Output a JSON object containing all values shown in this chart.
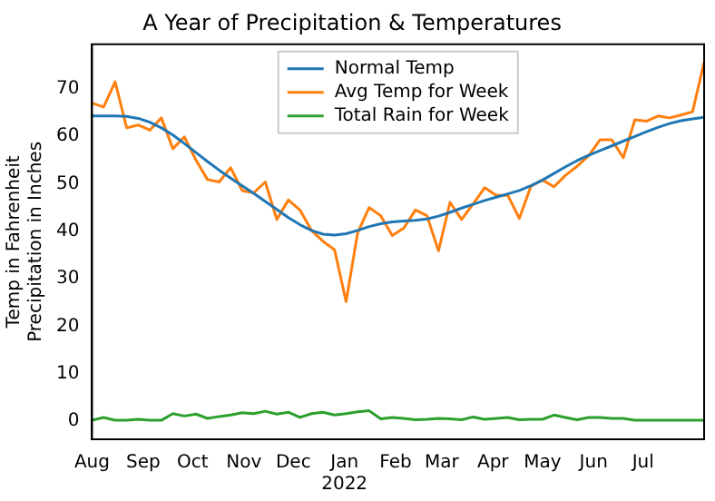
{
  "chart_data": {
    "type": "line",
    "title": "A Year of Precipitation & Temperatures",
    "ylabel": "Temp in Fahrenheit\nPrecipitation in Inches",
    "x": [
      "2021-08-01",
      "2021-08-08",
      "2021-08-15",
      "2021-08-22",
      "2021-08-29",
      "2021-09-05",
      "2021-09-12",
      "2021-09-19",
      "2021-09-26",
      "2021-10-03",
      "2021-10-10",
      "2021-10-17",
      "2021-10-24",
      "2021-10-31",
      "2021-11-07",
      "2021-11-14",
      "2021-11-21",
      "2021-11-28",
      "2021-12-05",
      "2021-12-12",
      "2021-12-19",
      "2021-12-26",
      "2022-01-02",
      "2022-01-09",
      "2022-01-16",
      "2022-01-23",
      "2022-01-30",
      "2022-02-06",
      "2022-02-13",
      "2022-02-20",
      "2022-02-27",
      "2022-03-06",
      "2022-03-13",
      "2022-03-20",
      "2022-03-27",
      "2022-04-03",
      "2022-04-10",
      "2022-04-17",
      "2022-04-24",
      "2022-05-01",
      "2022-05-08",
      "2022-05-15",
      "2022-05-22",
      "2022-05-29",
      "2022-06-05",
      "2022-06-12",
      "2022-06-19",
      "2022-06-26",
      "2022-07-03",
      "2022-07-10",
      "2022-07-17",
      "2022-07-24",
      "2022-07-31",
      "2022-08-07"
    ],
    "series": [
      {
        "name": "Normal Temp",
        "color": "#1f77b4",
        "values": [
          64.3,
          64.3,
          64.3,
          64.2,
          63.8,
          63,
          61.8,
          60.3,
          58.5,
          56.6,
          54.7,
          52.9,
          51.2,
          49.6,
          48,
          46.3,
          44.6,
          42.9,
          41.4,
          40.2,
          39.4,
          39.2,
          39.5,
          40.2,
          41,
          41.6,
          42,
          42.2,
          42.3,
          42.6,
          43.2,
          44,
          44.9,
          45.7,
          46.5,
          47.2,
          47.9,
          48.6,
          49.6,
          50.8,
          52.2,
          53.6,
          54.9,
          56,
          57,
          58,
          59,
          60,
          61,
          61.9,
          62.7,
          63.3,
          63.7,
          64
        ]
      },
      {
        "name": "Avg Temp for Week",
        "color": "#ff7f0e",
        "values": [
          67,
          66.2,
          71.5,
          61.8,
          62.4,
          61.3,
          63.9,
          57.4,
          59.9,
          55,
          50.9,
          50.4,
          53.4,
          48.6,
          48.1,
          50.4,
          42.5,
          46.6,
          44.5,
          40.2,
          37.9,
          36.1,
          25.2,
          39.7,
          45,
          43.3,
          39.1,
          40.7,
          44.5,
          43.3,
          35.9,
          46.1,
          42.5,
          45.8,
          49.2,
          47.6,
          47.6,
          42.7,
          49.5,
          50.8,
          49.4,
          51.8,
          53.7,
          55.9,
          59.3,
          59.3,
          55.5,
          63.5,
          63.2,
          64.3,
          63.9,
          64.5,
          65.2,
          75.6
        ]
      },
      {
        "name": "Total Rain for Week",
        "color": "#2ca02c",
        "values": [
          0.2,
          0.8,
          0.2,
          0.2,
          0.4,
          0.2,
          0.2,
          1.6,
          1.1,
          1.5,
          0.6,
          1,
          1.3,
          1.8,
          1.6,
          2.1,
          1.5,
          1.9,
          0.8,
          1.6,
          1.9,
          1.3,
          1.6,
          2,
          2.2,
          0.5,
          0.8,
          0.6,
          0.3,
          0.4,
          0.6,
          0.5,
          0.3,
          0.9,
          0.4,
          0.6,
          0.8,
          0.3,
          0.4,
          0.4,
          1.3,
          0.8,
          0.3,
          0.8,
          0.8,
          0.6,
          0.6,
          0.2,
          0.2,
          0.2,
          0.2,
          0.2,
          0.2,
          0.2
        ]
      }
    ],
    "xlim": [
      "2021-08-01",
      "2022-08-07"
    ],
    "xticks": [
      {
        "value": "2021-08-01",
        "label": "Aug"
      },
      {
        "value": "2021-09-01",
        "label": "Sep"
      },
      {
        "value": "2021-10-01",
        "label": "Oct"
      },
      {
        "value": "2021-11-01",
        "label": "Nov"
      },
      {
        "value": "2021-12-01",
        "label": "Dec"
      },
      {
        "value": "2022-01-01",
        "label": "Jan\n2022"
      },
      {
        "value": "2022-02-01",
        "label": "Feb"
      },
      {
        "value": "2022-03-01",
        "label": "Mar"
      },
      {
        "value": "2022-04-01",
        "label": "Apr"
      },
      {
        "value": "2022-05-01",
        "label": "May"
      },
      {
        "value": "2022-06-01",
        "label": "Jun"
      },
      {
        "value": "2022-07-01",
        "label": "Jul"
      }
    ],
    "ylim": [
      -3.8,
      79.4
    ],
    "yticks": [
      0,
      10,
      20,
      30,
      40,
      50,
      60,
      70
    ],
    "grid": false,
    "legend": "top",
    "marker": "none",
    "line_style": "solid"
  }
}
